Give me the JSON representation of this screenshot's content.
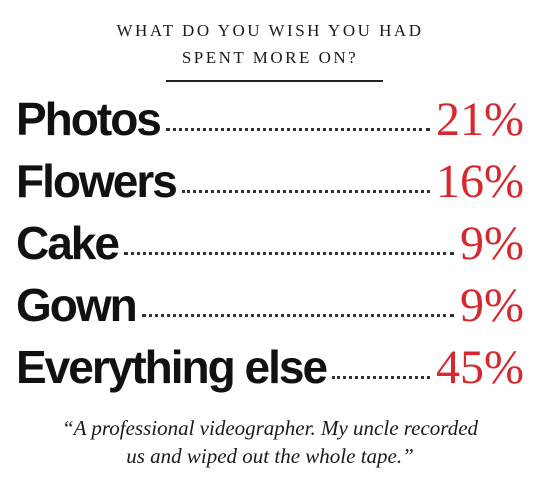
{
  "header": {
    "title_line1": "WHAT DO YOU WISH YOU HAD",
    "title_line2": "SPENT MORE ON?"
  },
  "items": [
    {
      "label": "Photos",
      "value": "21%"
    },
    {
      "label": "Flowers",
      "value": "16%"
    },
    {
      "label": "Cake",
      "value": "9%"
    },
    {
      "label": "Gown",
      "value": "9%"
    },
    {
      "label": "Everything else",
      "value": "45%"
    }
  ],
  "quote": {
    "line1": "“A professional videographer. My uncle recorded",
    "line2": "us and wiped out the whole tape.”"
  }
}
